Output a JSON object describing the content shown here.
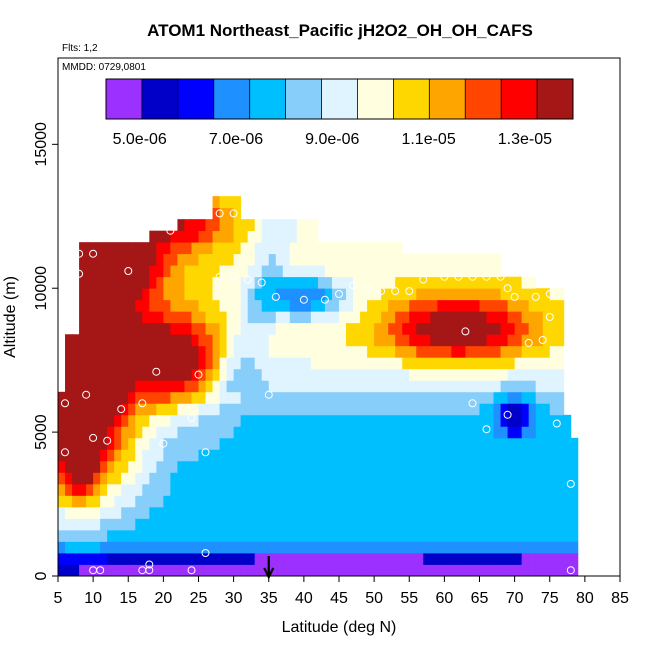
{
  "chart_data": {
    "type": "heatmap",
    "title": "ATOM1 Northeast_Pacific jH2O2_OH_OH_CAFS",
    "flights_label": "Flts: 1,2",
    "dates_label": "MMDD: 0729,0801",
    "xlabel": "Latitude (deg N)",
    "ylabel": "Altitude (m)",
    "xlim": [
      5,
      85
    ],
    "ylim": [
      0,
      18000
    ],
    "x_ticks": [
      "5",
      "10",
      "15",
      "20",
      "25",
      "30",
      "35",
      "40",
      "45",
      "50",
      "55",
      "60",
      "65",
      "70",
      "75",
      "80",
      "85"
    ],
    "y_ticks": [
      "0",
      "5000",
      "10000",
      "15000"
    ],
    "colorbar": {
      "range": [
        4.3e-06,
        1.4e-05
      ],
      "tick_labels": [
        "5.0e-06",
        "7.0e-06",
        "9.0e-06",
        "1.1e-05",
        "1.3e-05"
      ],
      "tick_values": [
        5e-06,
        7e-06,
        9e-06,
        1.1e-05,
        1.3e-05
      ]
    },
    "arrow_latitude": 35,
    "colors": {
      "scale": [
        "#9b30ff",
        "#0000c8",
        "#0000ff",
        "#1e90ff",
        "#00bfff",
        "#87cefa",
        "#e0f4ff",
        "#ffffe0",
        "#ffd700",
        "#ffa500",
        "#ff4500",
        "#ff0000",
        "#a51616"
      ]
    },
    "heatmap": {
      "lat_min": 5,
      "lat_max": 79,
      "lat_step": 1,
      "alt_step": 400,
      "columns": [
        {
          "lat_from": 5,
          "lat_to": 6,
          "alt_top": 6400
        },
        {
          "lat_from": 6,
          "lat_to": 8,
          "alt_top": 8400
        },
        {
          "lat_from": 8,
          "lat_to": 18,
          "alt_top": 11600
        },
        {
          "lat_from": 18,
          "lat_to": 22,
          "alt_top": 12000
        },
        {
          "lat_from": 22,
          "lat_to": 27,
          "alt_top": 12400
        },
        {
          "lat_from": 27,
          "lat_to": 31,
          "alt_top": 13200
        },
        {
          "lat_from": 31,
          "lat_to": 42,
          "alt_top": 12400
        },
        {
          "lat_from": 42,
          "lat_to": 54,
          "alt_top": 11600
        },
        {
          "lat_from": 54,
          "lat_to": 64,
          "alt_top": 11000
        },
        {
          "lat_from": 64,
          "lat_to": 68,
          "alt_top": 11000
        },
        {
          "lat_from": 68,
          "lat_to": 73,
          "alt_top": 10400
        },
        {
          "lat_from": 73,
          "lat_to": 77,
          "alt_top": 9800
        },
        {
          "lat_from": 77,
          "lat_to": 78,
          "alt_top": 5400
        },
        {
          "lat_from": 78,
          "lat_to": 79,
          "alt_top": 4800
        }
      ],
      "features": [
        {
          "kind": "hot",
          "lat": 10,
          "alt": 7000,
          "sx": 5,
          "sy": 2600,
          "amp": 5.5e-06
        },
        {
          "kind": "hot",
          "lat": 22,
          "alt": 7400,
          "sx": 4,
          "sy": 1200,
          "amp": 4.5e-06
        },
        {
          "kind": "hot",
          "lat": 12,
          "alt": 11000,
          "sx": 6,
          "sy": 900,
          "amp": 4e-06
        },
        {
          "kind": "hot",
          "lat": 23,
          "alt": 12300,
          "sx": 5,
          "sy": 700,
          "amp": 3e-06
        },
        {
          "kind": "hot",
          "lat": 62,
          "alt": 8600,
          "sx": 7,
          "sy": 800,
          "amp": 4.5e-06
        },
        {
          "kind": "hot",
          "lat": 8,
          "alt": 4500,
          "sx": 2,
          "sy": 1400,
          "amp": 4e-06
        },
        {
          "kind": "cold",
          "lat": 40,
          "alt": 9700,
          "sx": 4,
          "sy": 500,
          "amp": 3.5e-06
        },
        {
          "kind": "cold",
          "lat": 70,
          "alt": 5600,
          "sx": 2,
          "sy": 500,
          "amp": 3e-06
        },
        {
          "kind": "cold",
          "lat": 45,
          "alt": 300,
          "sx": 40,
          "sy": 350,
          "amp": 2.8e-06
        },
        {
          "kind": "cold",
          "lat": 76,
          "alt": 200,
          "sx": 3,
          "sy": 300,
          "amp": 3e-06
        }
      ],
      "obs_points": [
        [
          8,
          11200
        ],
        [
          8,
          10500
        ],
        [
          10,
          11200
        ],
        [
          15,
          10600
        ],
        [
          19,
          7100
        ],
        [
          14,
          5800
        ],
        [
          17,
          6000
        ],
        [
          9,
          6300
        ],
        [
          10,
          4800
        ],
        [
          12,
          4700
        ],
        [
          6,
          6000
        ],
        [
          6,
          4300
        ],
        [
          24,
          5500
        ],
        [
          25,
          7000
        ],
        [
          26,
          4300
        ],
        [
          21,
          12000
        ],
        [
          28,
          12600
        ],
        [
          30,
          12600
        ],
        [
          28,
          10400
        ],
        [
          30,
          10400
        ],
        [
          32,
          10300
        ],
        [
          34,
          10200
        ],
        [
          36,
          9700
        ],
        [
          40,
          9600
        ],
        [
          43,
          9600
        ],
        [
          45,
          9800
        ],
        [
          47,
          10100
        ],
        [
          49,
          10000
        ],
        [
          51,
          9900
        ],
        [
          53,
          9900
        ],
        [
          55,
          9900
        ],
        [
          57,
          10300
        ],
        [
          60,
          10400
        ],
        [
          62,
          10400
        ],
        [
          64,
          10400
        ],
        [
          66,
          10400
        ],
        [
          68,
          10400
        ],
        [
          69,
          10000
        ],
        [
          70,
          9700
        ],
        [
          73,
          9700
        ],
        [
          75,
          9800
        ],
        [
          75,
          9000
        ],
        [
          72,
          8100
        ],
        [
          74,
          8200
        ],
        [
          63,
          8500
        ],
        [
          64,
          6000
        ],
        [
          66,
          5100
        ],
        [
          69,
          5600
        ],
        [
          76,
          5300
        ],
        [
          78,
          3200
        ],
        [
          78,
          200
        ],
        [
          10,
          200
        ],
        [
          11,
          200
        ],
        [
          17,
          200
        ],
        [
          18,
          400
        ],
        [
          18,
          200
        ],
        [
          24,
          200
        ],
        [
          26,
          800
        ],
        [
          35,
          6300
        ],
        [
          20,
          4600
        ]
      ]
    }
  }
}
